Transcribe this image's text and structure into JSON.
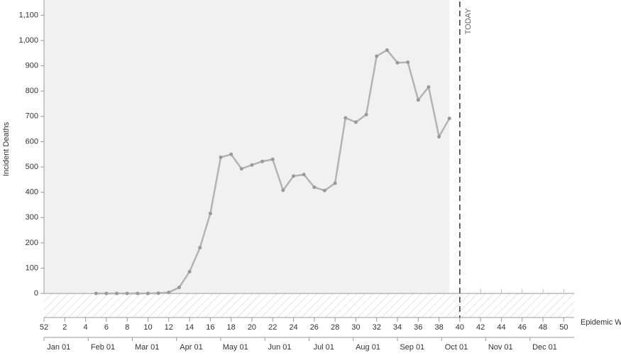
{
  "chart_data": {
    "type": "line",
    "y_label": "Incident Deaths",
    "x_label": "Epidemic Week",
    "x": [
      5,
      6,
      7,
      8,
      9,
      10,
      11,
      12,
      13,
      14,
      15,
      16,
      17,
      18,
      19,
      20,
      21,
      22,
      23,
      24,
      25,
      26,
      27,
      28,
      29,
      30,
      31,
      32,
      33,
      34,
      35,
      36,
      37,
      38,
      39
    ],
    "series": [
      {
        "color": "#b3b3b3",
        "values": [
          0,
          0,
          0,
          0,
          0,
          0,
          1,
          4,
          24,
          86,
          181,
          316,
          538,
          550,
          493,
          508,
          522,
          530,
          408,
          464,
          470,
          420,
          407,
          436,
          694,
          677,
          707,
          938,
          962,
          912,
          914,
          765,
          816,
          620,
          692
        ]
      }
    ],
    "xlim": [
      0,
      51
    ],
    "xticks": [
      {
        "value": 0,
        "label": "52"
      },
      2,
      4,
      6,
      8,
      10,
      12,
      14,
      16,
      18,
      20,
      22,
      24,
      26,
      28,
      30,
      32,
      34,
      36,
      38,
      40,
      42,
      44,
      46,
      48,
      50
    ],
    "ylim": [
      -95,
      1160
    ],
    "yticks": [
      0,
      100,
      200,
      300,
      400,
      500,
      600,
      700,
      800,
      900,
      {
        "value": 1000,
        "label": "1,000"
      },
      {
        "value": 1100,
        "label": "1,100"
      }
    ],
    "today": {
      "x": 40,
      "label": "TODAY"
    },
    "date_labels": [
      "Jan 01",
      "Feb 01",
      "Mar 01",
      "Apr 01",
      "May 01",
      "Jun 01",
      "Jul 01",
      "Aug 01",
      "Sep 01",
      "Oct 01",
      "Nov 01",
      "Dec 01"
    ]
  }
}
